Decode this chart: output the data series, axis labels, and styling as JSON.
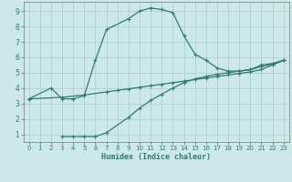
{
  "xlabel": "Humidex (Indice chaleur)",
  "ylabel": "",
  "bg_color": "#cce8e8",
  "grid_color": "#aacccc",
  "line_color": "#2e7d6e",
  "xlim": [
    -0.5,
    23.5
  ],
  "ylim": [
    0.5,
    9.6
  ],
  "xticks": [
    0,
    1,
    2,
    3,
    4,
    5,
    6,
    7,
    8,
    9,
    10,
    11,
    12,
    13,
    14,
    15,
    16,
    17,
    18,
    19,
    20,
    21,
    22,
    23
  ],
  "yticks": [
    1,
    2,
    3,
    4,
    5,
    6,
    7,
    8,
    9
  ],
  "line1_x": [
    0,
    2,
    3,
    4,
    5,
    6,
    7,
    9,
    10,
    11,
    12,
    13,
    14,
    15,
    16,
    17,
    18,
    19,
    20,
    21,
    22,
    23
  ],
  "line1_y": [
    3.3,
    4.0,
    3.3,
    3.3,
    3.5,
    5.8,
    7.8,
    8.5,
    9.0,
    9.2,
    9.1,
    8.9,
    7.4,
    6.2,
    5.8,
    5.3,
    5.1,
    5.1,
    5.2,
    5.5,
    5.6,
    5.8
  ],
  "line2_x": [
    0,
    3,
    5,
    7,
    8,
    9,
    10,
    11,
    12,
    13,
    14,
    15,
    16,
    17,
    18,
    19,
    20,
    21,
    22,
    23
  ],
  "line2_y": [
    3.3,
    3.4,
    3.55,
    3.75,
    3.85,
    3.95,
    4.05,
    4.15,
    4.25,
    4.35,
    4.45,
    4.55,
    4.65,
    4.75,
    4.85,
    4.95,
    5.05,
    5.2,
    5.5,
    5.8
  ],
  "line3_x": [
    3,
    4,
    5,
    6,
    7,
    9,
    10,
    11,
    12,
    13,
    14,
    15,
    16,
    17,
    18,
    19,
    20,
    21,
    22,
    23
  ],
  "line3_y": [
    0.85,
    0.85,
    0.85,
    0.85,
    1.1,
    2.1,
    2.7,
    3.2,
    3.6,
    4.0,
    4.35,
    4.6,
    4.75,
    4.9,
    5.0,
    5.1,
    5.2,
    5.4,
    5.55,
    5.8
  ]
}
